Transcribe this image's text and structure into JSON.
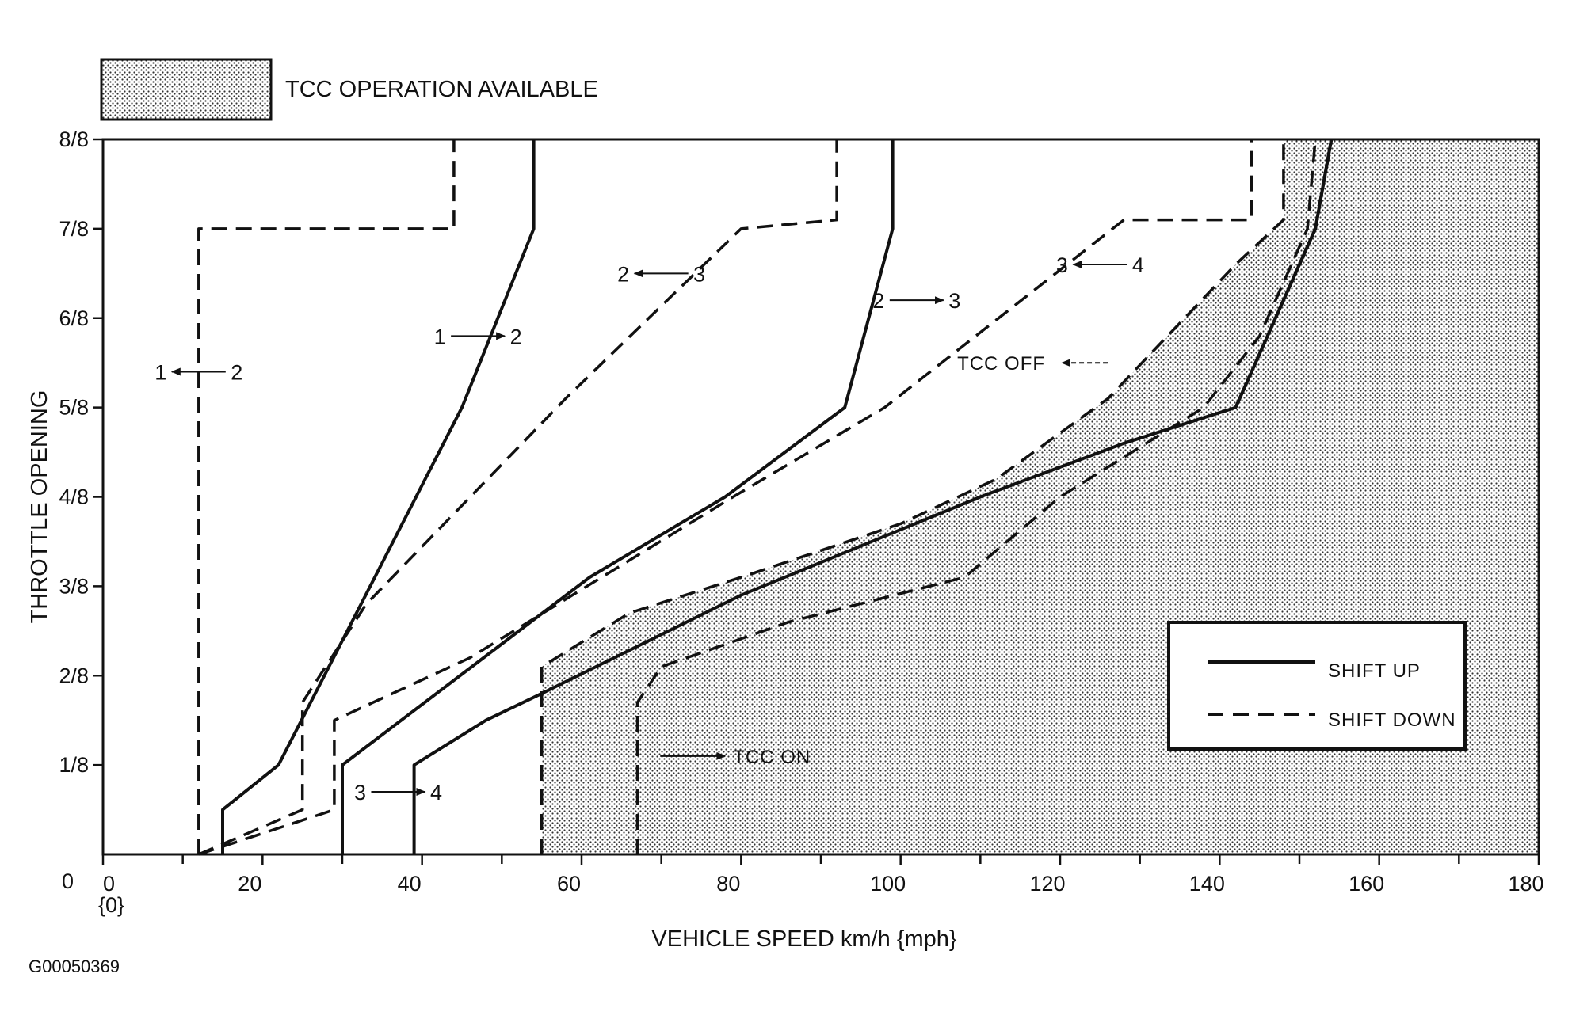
{
  "chart_data": {
    "type": "line",
    "figure_id": "G00050369",
    "xlabel": "VEHICLE SPEED  km/h {mph}",
    "ylabel": "THROTTLE OPENING",
    "origin_labels": {
      "y_zero": "0",
      "x_zero": "0",
      "x_zero_mph": "{0}"
    },
    "xlim": [
      0,
      180
    ],
    "ylim": [
      0,
      8
    ],
    "x_ticks": [
      0,
      20,
      40,
      60,
      80,
      100,
      120,
      140,
      160,
      180
    ],
    "x_tick_labels": [
      "0",
      "20",
      "40",
      "60",
      "80",
      "100",
      "120",
      "140",
      "160",
      "180"
    ],
    "y_ticks": [
      1,
      2,
      3,
      4,
      5,
      6,
      7,
      8
    ],
    "y_tick_labels": [
      "1/8",
      "2/8",
      "3/8",
      "4/8",
      "5/8",
      "6/8",
      "7/8",
      "8/8"
    ],
    "grid": false,
    "legend": {
      "placement": "bottom-right",
      "entries": [
        {
          "label": "SHIFT UP",
          "style": "solid"
        },
        {
          "label": "SHIFT DOWN",
          "style": "dashed"
        }
      ]
    },
    "region_legend": {
      "label": "TCC OPERATION AVAILABLE",
      "fill": "stippled",
      "placement": "top-left"
    },
    "tcc_region": [
      [
        55,
        0
      ],
      [
        55,
        2.1
      ],
      [
        66,
        2.7
      ],
      [
        80,
        3.1
      ],
      [
        100,
        3.7
      ],
      [
        112,
        4.2
      ],
      [
        126,
        5.1
      ],
      [
        142,
        6.6
      ],
      [
        148,
        7.1
      ],
      [
        148,
        8
      ],
      [
        180,
        8
      ],
      [
        180,
        0
      ]
    ],
    "series": [
      {
        "style": "dashed",
        "points": [
          [
            12,
            0
          ],
          [
            12,
            7
          ],
          [
            44,
            7
          ],
          [
            44,
            8
          ]
        ]
      },
      {
        "style": "solid",
        "points": [
          [
            15,
            0
          ],
          [
            15,
            0.5
          ],
          [
            22,
            1
          ],
          [
            45,
            5
          ],
          [
            54,
            7
          ],
          [
            54,
            8
          ]
        ]
      },
      {
        "style": "dashed",
        "points": [
          [
            12,
            0
          ],
          [
            25,
            0.5
          ],
          [
            25,
            1.7
          ],
          [
            33,
            2.8
          ],
          [
            58,
            5.1
          ],
          [
            80,
            7
          ],
          [
            92,
            7.1
          ],
          [
            92,
            8
          ]
        ]
      },
      {
        "style": "solid",
        "points": [
          [
            30,
            0
          ],
          [
            30,
            1
          ],
          [
            61,
            3.1
          ],
          [
            78,
            4
          ],
          [
            93,
            5
          ],
          [
            99,
            7
          ],
          [
            99,
            8
          ]
        ]
      },
      {
        "style": "dashed",
        "points": [
          [
            12,
            0
          ],
          [
            29,
            0.5
          ],
          [
            29,
            1.5
          ],
          [
            46,
            2.2
          ],
          [
            79,
            4
          ],
          [
            98,
            5
          ],
          [
            128,
            7.1
          ],
          [
            144,
            7.1
          ],
          [
            144,
            8
          ]
        ]
      },
      {
        "style": "solid",
        "points": [
          [
            39,
            0
          ],
          [
            39,
            1
          ],
          [
            48,
            1.5
          ],
          [
            55,
            1.8
          ],
          [
            80,
            2.9
          ],
          [
            110,
            4
          ],
          [
            128,
            4.6
          ],
          [
            142,
            5
          ],
          [
            152,
            7
          ],
          [
            154,
            8
          ]
        ]
      },
      {
        "style": "dashed",
        "points": [
          [
            55,
            0
          ],
          [
            55,
            2.1
          ],
          [
            66,
            2.7
          ],
          [
            80,
            3.1
          ],
          [
            100,
            3.7
          ],
          [
            112,
            4.2
          ],
          [
            126,
            5.1
          ],
          [
            142,
            6.6
          ],
          [
            148,
            7.1
          ],
          [
            148,
            8
          ]
        ]
      },
      {
        "style": "solid",
        "points": [
          [
            142,
            5
          ],
          [
            152,
            7
          ],
          [
            154,
            8
          ]
        ]
      },
      {
        "style": "dashed",
        "points": [
          [
            67,
            0
          ],
          [
            67,
            1.7
          ],
          [
            70,
            2.1
          ],
          [
            86,
            2.6
          ],
          [
            108,
            3.1
          ],
          [
            120,
            4
          ],
          [
            138,
            5
          ],
          [
            145,
            5.8
          ],
          [
            151,
            7
          ],
          [
            152,
            8
          ]
        ]
      }
    ],
    "annotations": [
      {
        "from": "1",
        "to": "2",
        "direction": "left",
        "x": 12,
        "y": 5.4
      },
      {
        "from": "1",
        "to": "2",
        "direction": "right",
        "x": 47,
        "y": 5.8
      },
      {
        "from": "2",
        "to": "3",
        "direction": "left",
        "x": 70,
        "y": 6.5
      },
      {
        "from": "2",
        "to": "3",
        "direction": "right",
        "x": 102,
        "y": 6.2
      },
      {
        "from": "3",
        "to": "4",
        "direction": "left",
        "x": 125,
        "y": 6.6
      },
      {
        "from": "3",
        "to": "4",
        "direction": "right",
        "x": 37,
        "y": 0.7
      }
    ],
    "text_annotations": [
      {
        "text": "TCC OFF",
        "arrow": "left",
        "x": 121,
        "y": 5.5
      },
      {
        "text": "TCC ON",
        "arrow": "right",
        "x": 79,
        "y": 1.1
      }
    ]
  }
}
